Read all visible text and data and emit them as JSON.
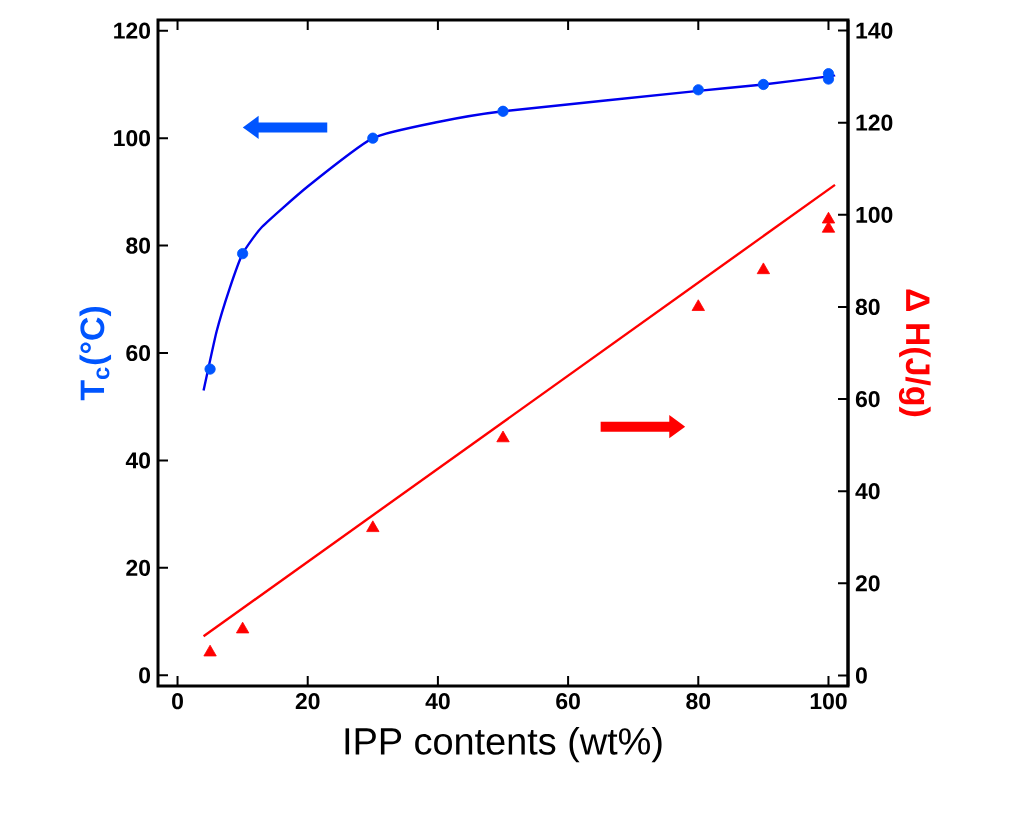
{
  "chart_data": {
    "type": "scatter",
    "xlabel": "IPP  contents (wt%)",
    "ylabel": "T$_{c}$(°C)",
    "y2label": "Δ H(J/g)",
    "xlim": [
      -3,
      103
    ],
    "xticks": [
      0,
      20,
      40,
      60,
      80,
      100
    ],
    "ylim": [
      -2,
      122
    ],
    "yticks": [
      0,
      20,
      40,
      60,
      80,
      100,
      120
    ],
    "y2lim": [
      -2.3,
      142.3
    ],
    "y2ticks": [
      0,
      20,
      40,
      60,
      80,
      100,
      120,
      140
    ],
    "grid": false,
    "series": [
      {
        "marker": "circle",
        "color": "#0055ff",
        "x": [
          5,
          10,
          30,
          50,
          80,
          90,
          100,
          100
        ],
        "values": [
          57,
          78.5,
          100,
          105,
          109,
          110,
          111,
          112
        ]
      },
      {
        "type": "line",
        "marker": "none",
        "color": "#0000ee",
        "x": [
          4,
          6,
          8,
          10,
          13,
          20,
          30,
          40,
          50,
          80,
          90,
          100,
          101
        ],
        "values": [
          53,
          64,
          72,
          78.5,
          83.5,
          91,
          100,
          103,
          105,
          108.8,
          110,
          111.5,
          111.7
        ]
      },
      {
        "marker": "triangle",
        "axis": "y2",
        "color": "#ff0000",
        "x": [
          5,
          10,
          30,
          50,
          80,
          90,
          100,
          100
        ],
        "values": [
          5,
          10,
          32,
          51.5,
          80,
          88,
          97,
          99
        ]
      },
      {
        "type": "line",
        "marker": "none",
        "axis": "y2",
        "color": "#ff0000",
        "x": [
          4,
          101
        ],
        "values": [
          8.5,
          106.5
        ]
      }
    ]
  }
}
